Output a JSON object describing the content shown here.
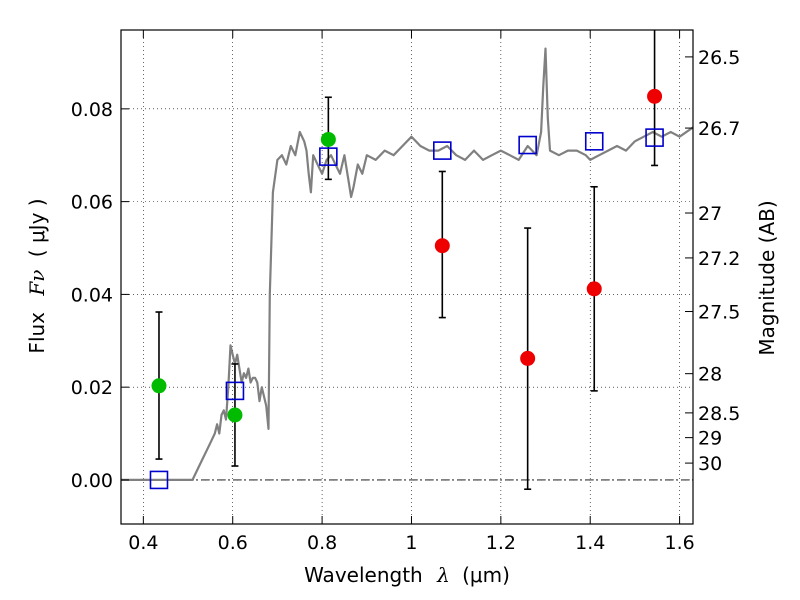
{
  "chart_data": {
    "type": "scatter",
    "xlabel_text": "Wavelength",
    "xlabel_symbol": "λ",
    "xlabel_unit": "(μm)",
    "ylabel_text": "Flux",
    "ylabel_symbol": "Fν",
    "ylabel_unit": "( μJy )",
    "right_ylabel": "Magnitude (AB)",
    "xlim": [
      0.35,
      1.63
    ],
    "ylim": [
      -0.0095,
      0.097
    ],
    "grid": true,
    "x_ticks": [
      {
        "value": 0.4,
        "label": "0.4"
      },
      {
        "value": 0.6,
        "label": "0.6"
      },
      {
        "value": 0.8,
        "label": "0.8"
      },
      {
        "value": 1.0,
        "label": "1"
      },
      {
        "value": 1.2,
        "label": "1.2"
      },
      {
        "value": 1.4,
        "label": "1.4"
      },
      {
        "value": 1.6,
        "label": "1.6"
      }
    ],
    "y_ticks": [
      {
        "value": 0.0,
        "label": "0.00"
      },
      {
        "value": 0.02,
        "label": "0.02"
      },
      {
        "value": 0.04,
        "label": "0.04"
      },
      {
        "value": 0.06,
        "label": "0.06"
      },
      {
        "value": 0.08,
        "label": "0.08"
      }
    ],
    "mag_ticks": [
      {
        "mag": 26.5,
        "label": "26.5"
      },
      {
        "mag": 26.7,
        "label": "26.7"
      },
      {
        "mag": 27.0,
        "label": "27"
      },
      {
        "mag": 27.2,
        "label": "27.2"
      },
      {
        "mag": 27.5,
        "label": "27.5"
      },
      {
        "mag": 28.0,
        "label": "28"
      },
      {
        "mag": 28.5,
        "label": "28.5"
      },
      {
        "mag": 29.0,
        "label": "29"
      },
      {
        "mag": 30.0,
        "label": "30"
      }
    ],
    "series": [
      {
        "kind": "line",
        "color": "#808080",
        "points": [
          [
            0.35,
            0.0
          ],
          [
            0.5,
            0.0
          ],
          [
            0.51,
            0.0
          ],
          [
            0.53,
            0.004
          ],
          [
            0.55,
            0.008
          ],
          [
            0.56,
            0.01
          ],
          [
            0.565,
            0.012
          ],
          [
            0.57,
            0.01
          ],
          [
            0.575,
            0.014
          ],
          [
            0.58,
            0.015
          ],
          [
            0.585,
            0.013
          ],
          [
            0.59,
            0.02
          ],
          [
            0.595,
            0.029
          ],
          [
            0.6,
            0.027
          ],
          [
            0.605,
            0.025
          ],
          [
            0.61,
            0.027
          ],
          [
            0.615,
            0.024
          ],
          [
            0.62,
            0.021
          ],
          [
            0.625,
            0.023
          ],
          [
            0.63,
            0.022
          ],
          [
            0.635,
            0.024
          ],
          [
            0.64,
            0.021
          ],
          [
            0.645,
            0.022
          ],
          [
            0.65,
            0.022
          ],
          [
            0.655,
            0.021
          ],
          [
            0.66,
            0.017
          ],
          [
            0.665,
            0.02
          ],
          [
            0.67,
            0.018
          ],
          [
            0.675,
            0.016
          ],
          [
            0.68,
            0.011
          ],
          [
            0.683,
            0.04
          ],
          [
            0.69,
            0.062
          ],
          [
            0.7,
            0.069
          ],
          [
            0.71,
            0.07
          ],
          [
            0.72,
            0.068
          ],
          [
            0.73,
            0.072
          ],
          [
            0.74,
            0.07
          ],
          [
            0.75,
            0.075
          ],
          [
            0.76,
            0.073
          ],
          [
            0.765,
            0.071
          ],
          [
            0.77,
            0.066
          ],
          [
            0.775,
            0.062
          ],
          [
            0.78,
            0.07
          ],
          [
            0.79,
            0.068
          ],
          [
            0.8,
            0.066
          ],
          [
            0.81,
            0.069
          ],
          [
            0.82,
            0.07
          ],
          [
            0.83,
            0.068
          ],
          [
            0.84,
            0.066
          ],
          [
            0.85,
            0.07
          ],
          [
            0.86,
            0.064
          ],
          [
            0.865,
            0.061
          ],
          [
            0.87,
            0.063
          ],
          [
            0.88,
            0.068
          ],
          [
            0.89,
            0.066
          ],
          [
            0.9,
            0.07
          ],
          [
            0.92,
            0.069
          ],
          [
            0.94,
            0.071
          ],
          [
            0.96,
            0.07
          ],
          [
            0.98,
            0.072
          ],
          [
            1.0,
            0.074
          ],
          [
            1.02,
            0.072
          ],
          [
            1.04,
            0.071
          ],
          [
            1.06,
            0.071
          ],
          [
            1.08,
            0.072
          ],
          [
            1.1,
            0.07
          ],
          [
            1.12,
            0.069
          ],
          [
            1.14,
            0.071
          ],
          [
            1.16,
            0.069
          ],
          [
            1.18,
            0.07
          ],
          [
            1.2,
            0.071
          ],
          [
            1.22,
            0.07
          ],
          [
            1.24,
            0.069
          ],
          [
            1.26,
            0.072
          ],
          [
            1.28,
            0.07
          ],
          [
            1.29,
            0.075
          ],
          [
            1.295,
            0.085
          ],
          [
            1.3,
            0.093
          ],
          [
            1.305,
            0.078
          ],
          [
            1.31,
            0.071
          ],
          [
            1.33,
            0.07
          ],
          [
            1.35,
            0.071
          ],
          [
            1.37,
            0.071
          ],
          [
            1.39,
            0.07
          ],
          [
            1.4,
            0.069
          ],
          [
            1.42,
            0.07
          ],
          [
            1.44,
            0.071
          ],
          [
            1.46,
            0.072
          ],
          [
            1.48,
            0.071
          ],
          [
            1.5,
            0.073
          ],
          [
            1.52,
            0.074
          ],
          [
            1.54,
            0.075
          ],
          [
            1.56,
            0.074
          ],
          [
            1.58,
            0.075
          ],
          [
            1.6,
            0.074
          ],
          [
            1.63,
            0.076
          ]
        ]
      },
      {
        "kind": "points",
        "marker": "circle",
        "color": "#00bb00",
        "points": [
          {
            "x": 0.435,
            "y": 0.0203,
            "err_low": 0.0045,
            "err_high": 0.0362
          },
          {
            "x": 0.605,
            "y": 0.014,
            "err_low": 0.003,
            "err_high": 0.025
          },
          {
            "x": 0.814,
            "y": 0.0734,
            "err_low": 0.0648,
            "err_high": 0.0825
          }
        ]
      },
      {
        "kind": "points",
        "marker": "circle",
        "color": "#ee0000",
        "points": [
          {
            "x": 1.069,
            "y": 0.0505,
            "err_low": 0.035,
            "err_high": 0.0665
          },
          {
            "x": 1.26,
            "y": 0.0262,
            "err_low": -0.002,
            "err_high": 0.0543
          },
          {
            "x": 1.409,
            "y": 0.0412,
            "err_low": 0.0192,
            "err_high": 0.0632
          },
          {
            "x": 1.544,
            "y": 0.0827,
            "err_low": 0.0678,
            "err_high": 0.099
          }
        ]
      },
      {
        "kind": "points",
        "marker": "square-open",
        "color": "#0000cc",
        "points": [
          {
            "x": 0.435,
            "y": 0.0
          },
          {
            "x": 0.605,
            "y": 0.0192
          },
          {
            "x": 0.814,
            "y": 0.0697
          },
          {
            "x": 1.069,
            "y": 0.071
          },
          {
            "x": 1.26,
            "y": 0.0722
          },
          {
            "x": 1.409,
            "y": 0.073
          },
          {
            "x": 1.544,
            "y": 0.0738
          }
        ]
      }
    ]
  }
}
